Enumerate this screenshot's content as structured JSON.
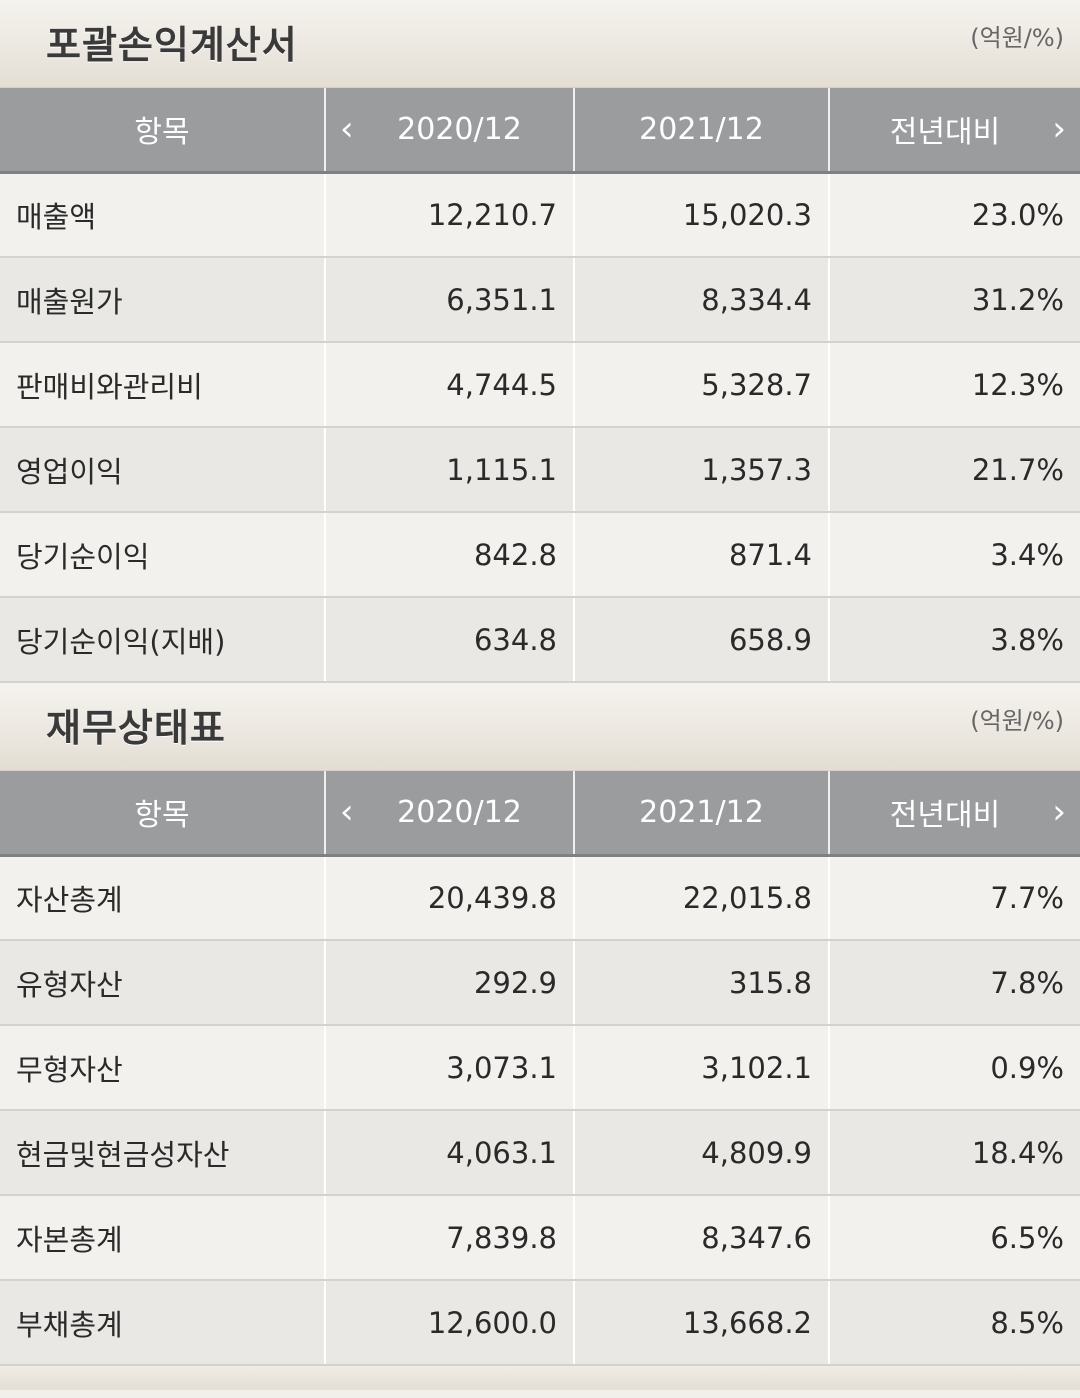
{
  "income_statement": {
    "title": "포괄손익계산서",
    "unit": "(억원/%)",
    "headers": [
      "항목",
      "2020/12",
      "2021/12",
      "전년대비"
    ],
    "prev_icon": "chevron-left-icon",
    "next_icon": "chevron-right-icon",
    "rows": [
      [
        "매출액",
        "12,210.7",
        "15,020.3",
        "23.0%"
      ],
      [
        "매출원가",
        "6,351.1",
        "8,334.4",
        "31.2%"
      ],
      [
        "판매비와관리비",
        "4,744.5",
        "5,328.7",
        "12.3%"
      ],
      [
        "영업이익",
        "1,115.1",
        "1,357.3",
        "21.7%"
      ],
      [
        "당기순이익",
        "842.8",
        "871.4",
        "3.4%"
      ],
      [
        "당기순이익(지배)",
        "634.8",
        "658.9",
        "3.8%"
      ]
    ]
  },
  "balance_sheet": {
    "title": "재무상태표",
    "unit": "(억원/%)",
    "headers": [
      "항목",
      "2020/12",
      "2021/12",
      "전년대비"
    ],
    "prev_icon": "chevron-left-icon",
    "next_icon": "chevron-right-icon",
    "rows": [
      [
        "자산총계",
        "20,439.8",
        "22,015.8",
        "7.7%"
      ],
      [
        "유형자산",
        "292.9",
        "315.8",
        "7.8%"
      ],
      [
        "무형자산",
        "3,073.1",
        "3,102.1",
        "0.9%"
      ],
      [
        "현금및현금성자산",
        "4,063.1",
        "4,809.9",
        "18.4%"
      ],
      [
        "자본총계",
        "7,839.8",
        "8,347.6",
        "6.5%"
      ],
      [
        "부채총계",
        "12,600.0",
        "13,668.2",
        "8.5%"
      ]
    ]
  }
}
